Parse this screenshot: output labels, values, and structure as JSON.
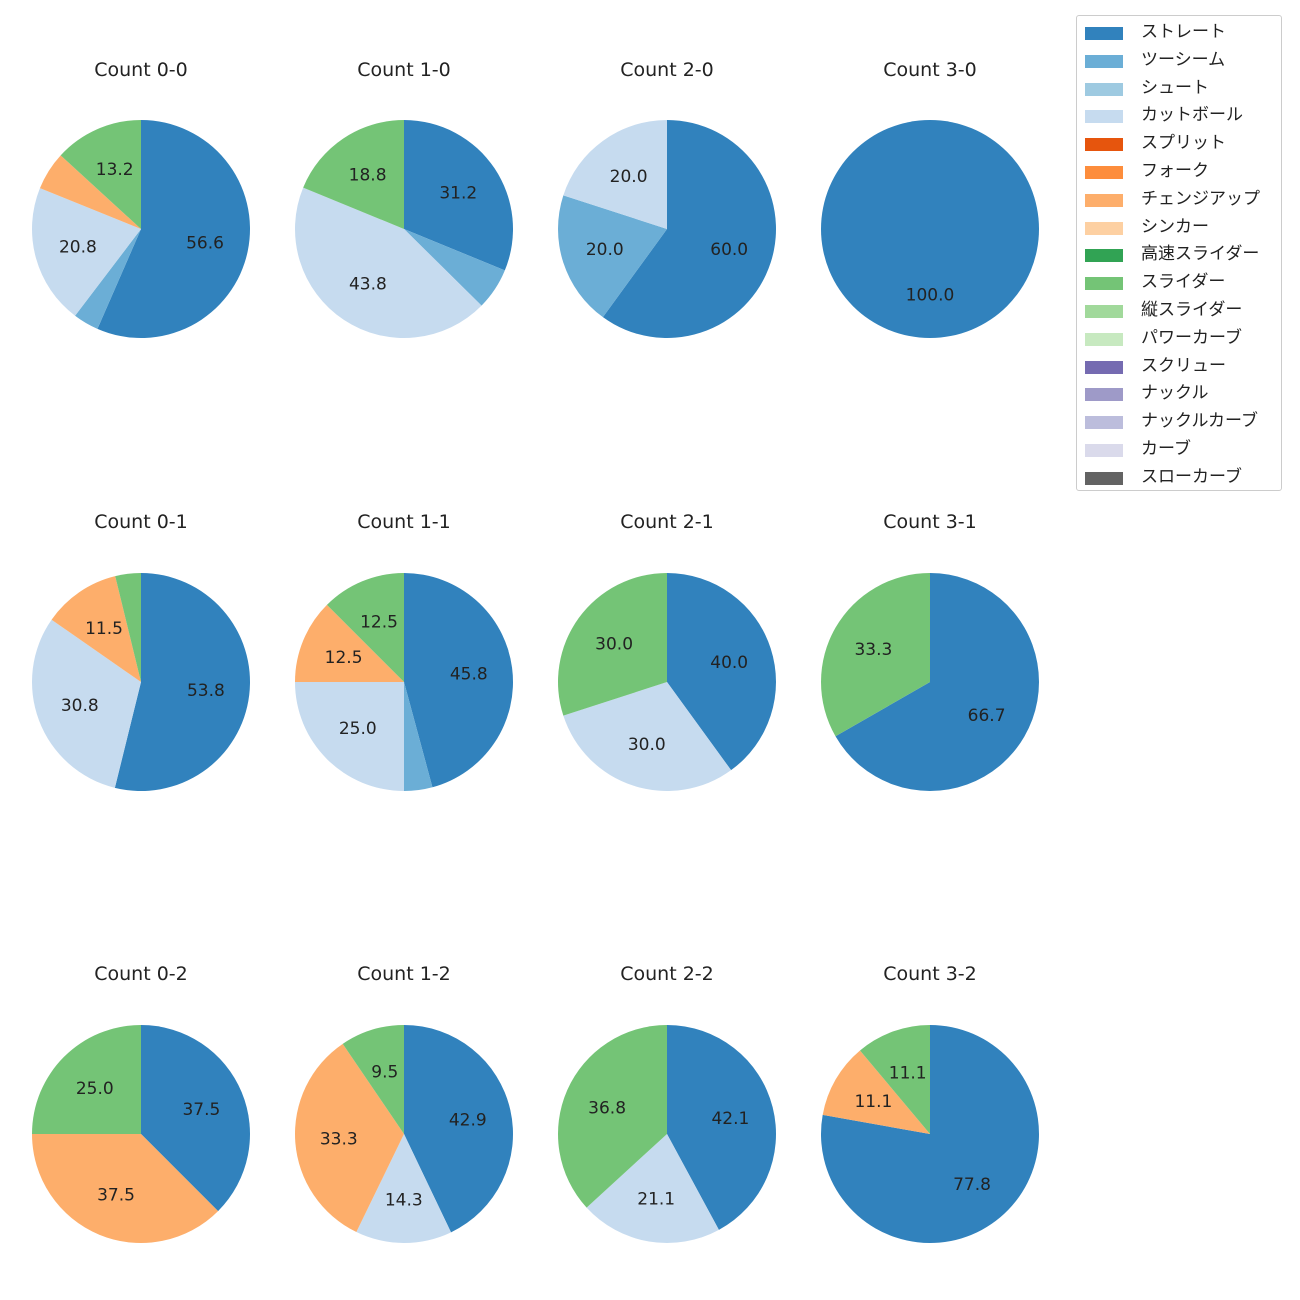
{
  "chart_data": [
    {
      "type": "pie",
      "title": "Count 0-0",
      "slices": [
        {
          "series": "ストレート",
          "value": 56.6
        },
        {
          "series": "ツーシーム",
          "value": 3.8
        },
        {
          "series": "カットボール",
          "value": 20.8
        },
        {
          "series": "チェンジアップ",
          "value": 5.7
        },
        {
          "series": "スライダー",
          "value": 13.2
        }
      ]
    },
    {
      "type": "pie",
      "title": "Count 1-0",
      "slices": [
        {
          "series": "ストレート",
          "value": 31.2
        },
        {
          "series": "ツーシーム",
          "value": 6.2
        },
        {
          "series": "カットボール",
          "value": 43.8
        },
        {
          "series": "スライダー",
          "value": 18.8
        }
      ]
    },
    {
      "type": "pie",
      "title": "Count 2-0",
      "slices": [
        {
          "series": "ストレート",
          "value": 60.0
        },
        {
          "series": "ツーシーム",
          "value": 20.0
        },
        {
          "series": "カットボール",
          "value": 20.0
        }
      ]
    },
    {
      "type": "pie",
      "title": "Count 3-0",
      "slices": [
        {
          "series": "ストレート",
          "value": 100.0
        }
      ]
    },
    {
      "type": "pie",
      "title": "Count 0-1",
      "slices": [
        {
          "series": "ストレート",
          "value": 53.8
        },
        {
          "series": "カットボール",
          "value": 30.8
        },
        {
          "series": "チェンジアップ",
          "value": 11.5
        },
        {
          "series": "スライダー",
          "value": 3.8
        }
      ]
    },
    {
      "type": "pie",
      "title": "Count 1-1",
      "slices": [
        {
          "series": "ストレート",
          "value": 45.8
        },
        {
          "series": "ツーシーム",
          "value": 4.2
        },
        {
          "series": "カットボール",
          "value": 25.0
        },
        {
          "series": "チェンジアップ",
          "value": 12.5
        },
        {
          "series": "スライダー",
          "value": 12.5
        }
      ]
    },
    {
      "type": "pie",
      "title": "Count 2-1",
      "slices": [
        {
          "series": "ストレート",
          "value": 40.0
        },
        {
          "series": "カットボール",
          "value": 30.0
        },
        {
          "series": "スライダー",
          "value": 30.0
        }
      ]
    },
    {
      "type": "pie",
      "title": "Count 3-1",
      "slices": [
        {
          "series": "ストレート",
          "value": 66.7
        },
        {
          "series": "スライダー",
          "value": 33.3
        }
      ]
    },
    {
      "type": "pie",
      "title": "Count 0-2",
      "slices": [
        {
          "series": "ストレート",
          "value": 37.5
        },
        {
          "series": "チェンジアップ",
          "value": 37.5
        },
        {
          "series": "スライダー",
          "value": 25.0
        }
      ]
    },
    {
      "type": "pie",
      "title": "Count 1-2",
      "slices": [
        {
          "series": "ストレート",
          "value": 42.9
        },
        {
          "series": "カットボール",
          "value": 14.3
        },
        {
          "series": "チェンジアップ",
          "value": 33.3
        },
        {
          "series": "スライダー",
          "value": 9.5
        }
      ]
    },
    {
      "type": "pie",
      "title": "Count 2-2",
      "slices": [
        {
          "series": "ストレート",
          "value": 42.1
        },
        {
          "series": "カットボール",
          "value": 21.1
        },
        {
          "series": "スライダー",
          "value": 36.8
        }
      ]
    },
    {
      "type": "pie",
      "title": "Count 3-2",
      "slices": [
        {
          "series": "ストレート",
          "value": 77.8
        },
        {
          "series": "チェンジアップ",
          "value": 11.1
        },
        {
          "series": "スライダー",
          "value": 11.1
        }
      ]
    }
  ],
  "legend": [
    {
      "label": "ストレート",
      "color": "#3182bd"
    },
    {
      "label": "ツーシーム",
      "color": "#6baed6"
    },
    {
      "label": "シュート",
      "color": "#9ecae1"
    },
    {
      "label": "カットボール",
      "color": "#c6dbef"
    },
    {
      "label": "スプリット",
      "color": "#e6550d"
    },
    {
      "label": "フォーク",
      "color": "#fd8d3c"
    },
    {
      "label": "チェンジアップ",
      "color": "#fdae6b"
    },
    {
      "label": "シンカー",
      "color": "#fdd0a2"
    },
    {
      "label": "高速スライダー",
      "color": "#31a354"
    },
    {
      "label": "スライダー",
      "color": "#74c476"
    },
    {
      "label": "縦スライダー",
      "color": "#a1d99b"
    },
    {
      "label": "パワーカーブ",
      "color": "#c7e9c0"
    },
    {
      "label": "スクリュー",
      "color": "#756bb1"
    },
    {
      "label": "ナックル",
      "color": "#9e9ac8"
    },
    {
      "label": "ナックルカーブ",
      "color": "#bcbddc"
    },
    {
      "label": "カーブ",
      "color": "#dadaeb"
    },
    {
      "label": "スローカーブ",
      "color": "#636363"
    }
  ]
}
